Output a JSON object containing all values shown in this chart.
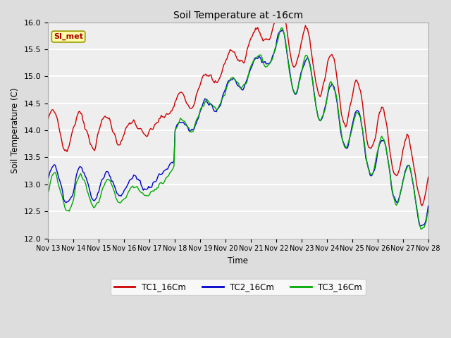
{
  "title": "Soil Temperature at -16cm",
  "xlabel": "Time",
  "ylabel": "Soil Temperature (C)",
  "ylim": [
    12.0,
    16.0
  ],
  "yticks": [
    12.0,
    12.5,
    13.0,
    13.5,
    14.0,
    14.5,
    15.0,
    15.5,
    16.0
  ],
  "xtick_labels": [
    "Nov 13",
    "Nov 14",
    "Nov 15",
    "Nov 16",
    "Nov 17",
    "Nov 18",
    "Nov 19",
    "Nov 20",
    "Nov 21",
    "Nov 22",
    "Nov 23",
    "Nov 24",
    "Nov 25",
    "Nov 26",
    "Nov 27",
    "Nov 28"
  ],
  "legend_labels": [
    "TC1_16Cm",
    "TC2_16Cm",
    "TC3_16Cm"
  ],
  "colors": [
    "#cc0000",
    "#0000cc",
    "#00aa00"
  ],
  "annotation_text": "SI_met",
  "annotation_bg": "#ffffaa",
  "annotation_border": "#999900",
  "background_color": "#dddddd",
  "plot_bg": "#eeeeee",
  "grid_color": "#ffffff",
  "figsize": [
    6.4,
    4.8
  ],
  "dpi": 100
}
